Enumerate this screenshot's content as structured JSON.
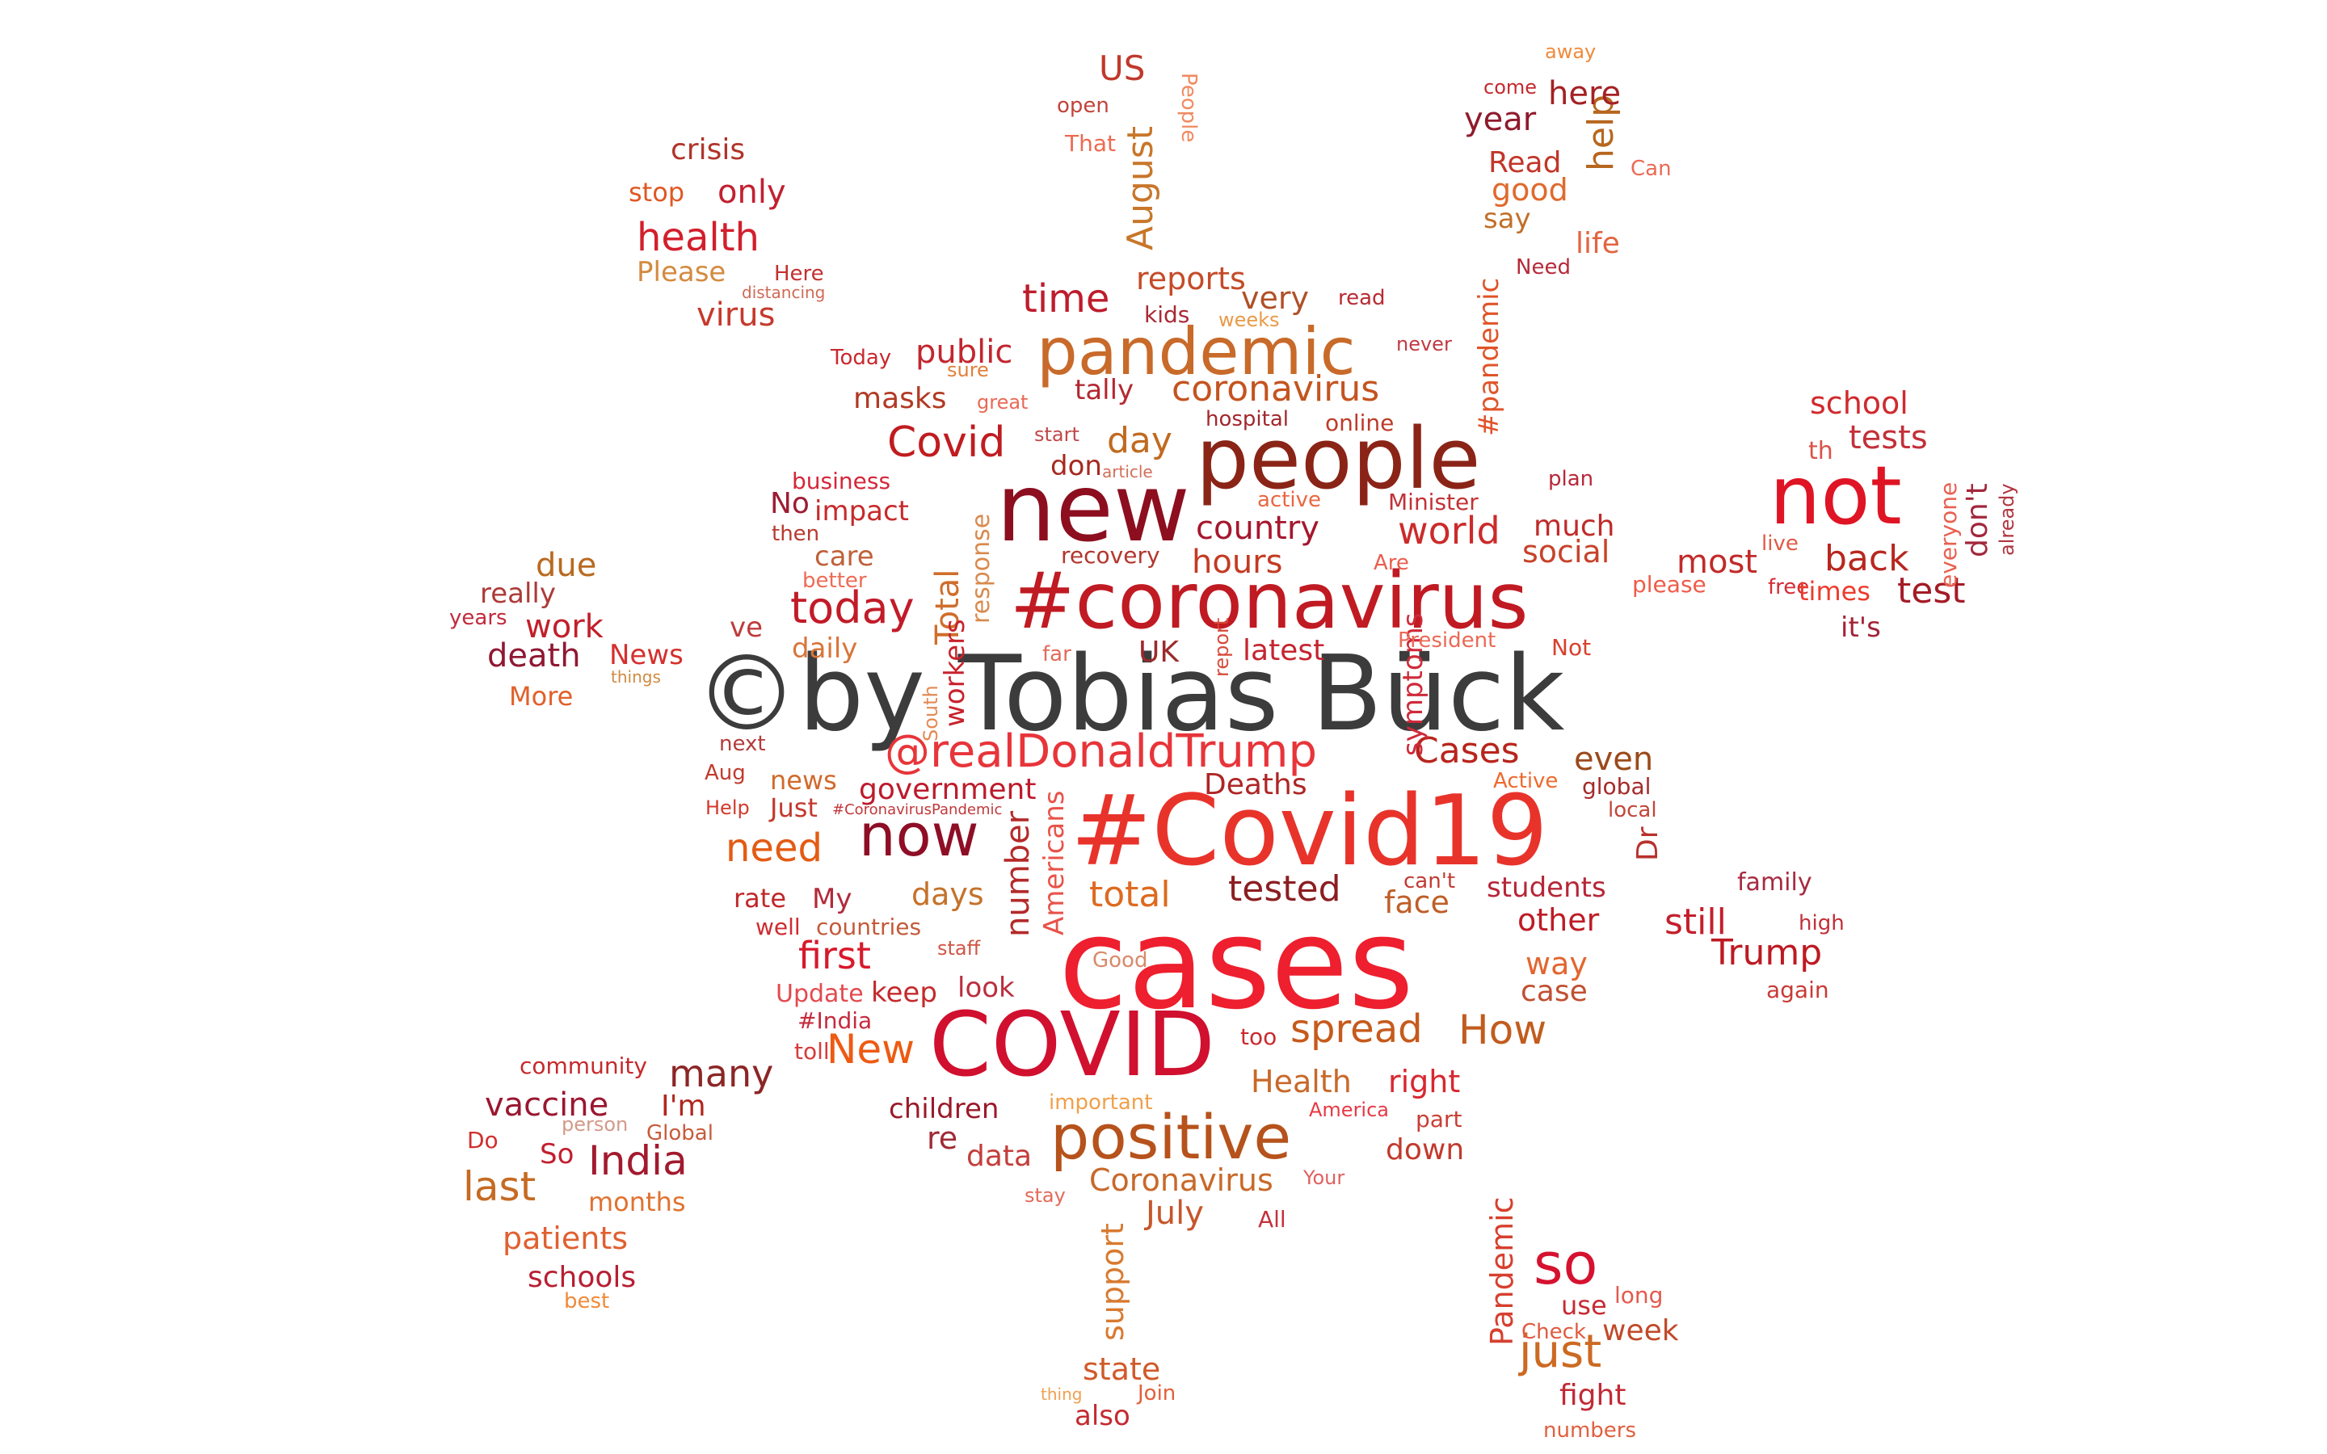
{
  "words": [
    {
      "text": "©by Tobias Bück",
      "color": "#3c3c3c"
    },
    {
      "text": "cases",
      "color": "#ee1f2e"
    },
    {
      "text": "#Covid19",
      "color": "#e8332b"
    },
    {
      "text": "#coronavirus",
      "color": "#c01a22"
    },
    {
      "text": "new",
      "color": "#8c0e1f"
    },
    {
      "text": "people",
      "color": "#8a2417"
    },
    {
      "text": "COVID",
      "color": "#d0102e"
    },
    {
      "text": "not",
      "color": "#df1424"
    },
    {
      "text": "pandemic",
      "color": "#c86a2a"
    },
    {
      "text": "positive",
      "color": "#b6521b"
    },
    {
      "text": "now",
      "color": "#8e0e26"
    },
    {
      "text": "so",
      "color": "#d5122f"
    },
    {
      "text": "@realDonaldTrump",
      "color": "#e7353a"
    },
    {
      "text": "today",
      "color": "#c21b28"
    },
    {
      "text": "Covid",
      "color": "#c01c20"
    },
    {
      "text": "coronavirus",
      "color": "#c4541f"
    },
    {
      "text": "time",
      "color": "#be1c2c"
    },
    {
      "text": "health",
      "color": "#d21f2d"
    },
    {
      "text": "spread",
      "color": "#c65a1c"
    },
    {
      "text": "India",
      "color": "#a21a2e"
    },
    {
      "text": "just",
      "color": "#cc6a22"
    },
    {
      "text": "New",
      "color": "#ed5a12"
    },
    {
      "text": "need",
      "color": "#e35b14"
    },
    {
      "text": "many",
      "color": "#8c2626"
    },
    {
      "text": "last",
      "color": "#c56b23"
    },
    {
      "text": "first",
      "color": "#d8192c"
    },
    {
      "text": "world",
      "color": "#cb2b2a"
    },
    {
      "text": "Cases",
      "color": "#b8251d"
    },
    {
      "text": "total",
      "color": "#dd6a20"
    },
    {
      "text": "tested",
      "color": "#8b1e21"
    },
    {
      "text": "still",
      "color": "#c41f2b"
    },
    {
      "text": "Trump",
      "color": "#bd1a22"
    },
    {
      "text": "How",
      "color": "#c15c1e"
    },
    {
      "text": "vaccine",
      "color": "#9a1730"
    },
    {
      "text": "work",
      "color": "#c21f2a"
    },
    {
      "text": "death",
      "color": "#8f1833"
    },
    {
      "text": "due",
      "color": "#b86a20"
    },
    {
      "text": "country",
      "color": "#a5172e"
    },
    {
      "text": "hours",
      "color": "#c33a22"
    },
    {
      "text": "back",
      "color": "#b8271f"
    },
    {
      "text": "most",
      "color": "#c22a2a"
    },
    {
      "text": "test",
      "color": "#a41b26"
    },
    {
      "text": "even",
      "color": "#9b4a1a"
    },
    {
      "text": "day",
      "color": "#c06a20"
    },
    {
      "text": "masks",
      "color": "#b23a25"
    },
    {
      "text": "public",
      "color": "#c2262f"
    },
    {
      "text": "help",
      "color": "#b7661f"
    },
    {
      "text": "here",
      "color": "#a32124"
    },
    {
      "text": "year",
      "color": "#8f1a2c"
    },
    {
      "text": "US",
      "color": "#c0392b"
    },
    {
      "text": "August",
      "color": "#c8762a"
    },
    {
      "text": "reports",
      "color": "#c44b28"
    },
    {
      "text": "very",
      "color": "#b05028"
    },
    {
      "text": "crisis",
      "color": "#b0342a"
    },
    {
      "text": "only",
      "color": "#c22030"
    },
    {
      "text": "stop",
      "color": "#e05722"
    },
    {
      "text": "Please",
      "color": "#d48a40"
    },
    {
      "text": "virus",
      "color": "#c53a2d"
    },
    {
      "text": "Here",
      "color": "#c2302e"
    },
    {
      "text": "distancing",
      "color": "#d06a55"
    },
    {
      "text": "Today",
      "color": "#c8292f"
    },
    {
      "text": "sure",
      "color": "#e0803a"
    },
    {
      "text": "great",
      "color": "#e86a55"
    },
    {
      "text": "tally",
      "color": "#b42830"
    },
    {
      "text": "kids",
      "color": "#a82a35"
    },
    {
      "text": "weeks",
      "color": "#e89a48"
    },
    {
      "text": "read",
      "color": "#b82a33"
    },
    {
      "text": "never",
      "color": "#c23a44"
    },
    {
      "text": "#pandemic",
      "color": "#e0542a"
    },
    {
      "text": "hospital",
      "color": "#a2282d"
    },
    {
      "text": "online",
      "color": "#bd3b2a"
    },
    {
      "text": "start",
      "color": "#c04848"
    },
    {
      "text": "article",
      "color": "#d26e5a"
    },
    {
      "text": "don",
      "color": "#a6291e"
    },
    {
      "text": "business",
      "color": "#d5273a"
    },
    {
      "text": "No",
      "color": "#9c1d34"
    },
    {
      "text": "impact",
      "color": "#c72a2b"
    },
    {
      "text": "then",
      "color": "#b83a2e"
    },
    {
      "text": "care",
      "color": "#c0603a"
    },
    {
      "text": "better",
      "color": "#ed6b55"
    },
    {
      "text": "Total",
      "color": "#cf6e2c"
    },
    {
      "text": "response",
      "color": "#d88a4e"
    },
    {
      "text": "active",
      "color": "#ea6640"
    },
    {
      "text": "Minister",
      "color": "#c23237"
    },
    {
      "text": "recovery",
      "color": "#b2372e"
    },
    {
      "text": "Are",
      "color": "#ea5e4e"
    },
    {
      "text": "much",
      "color": "#c02a2a"
    },
    {
      "text": "social",
      "color": "#c6432a"
    },
    {
      "text": "please",
      "color": "#ef5b49"
    },
    {
      "text": "free",
      "color": "#d42c35"
    },
    {
      "text": "times",
      "color": "#ed3b2c"
    },
    {
      "text": "it's",
      "color": "#a32438"
    },
    {
      "text": "live",
      "color": "#e05a45"
    },
    {
      "text": "everyone",
      "color": "#e86050"
    },
    {
      "text": "don't",
      "color": "#a2273c"
    },
    {
      "text": "already",
      "color": "#b23540"
    },
    {
      "text": "plan",
      "color": "#b8283a"
    },
    {
      "text": "school",
      "color": "#d02a2e"
    },
    {
      "text": "tests",
      "color": "#c3303a"
    },
    {
      "text": "th",
      "color": "#d85448"
    },
    {
      "text": "really",
      "color": "#ad3a38"
    },
    {
      "text": "years",
      "color": "#c22a3c"
    },
    {
      "text": "News",
      "color": "#d5302e"
    },
    {
      "text": "things",
      "color": "#d08a40"
    },
    {
      "text": "More",
      "color": "#e0602a"
    },
    {
      "text": "ve",
      "color": "#bf3b3c"
    },
    {
      "text": "daily",
      "color": "#d8753a"
    },
    {
      "text": "workers",
      "color": "#c8222c"
    },
    {
      "text": "far",
      "color": "#e26a5a"
    },
    {
      "text": "UK",
      "color": "#9b2a2c"
    },
    {
      "text": "report",
      "color": "#d64a3a"
    },
    {
      "text": "latest",
      "color": "#c52430"
    },
    {
      "text": "symptoms",
      "color": "#cf2a3a"
    },
    {
      "text": "President",
      "color": "#ea6a55"
    },
    {
      "text": "Not",
      "color": "#d8402d"
    },
    {
      "text": "next",
      "color": "#b53a3a"
    },
    {
      "text": "Aug",
      "color": "#c23a2d"
    },
    {
      "text": "South",
      "color": "#e28a55"
    },
    {
      "text": "news",
      "color": "#d06a2c"
    },
    {
      "text": "government",
      "color": "#bc1b2c"
    },
    {
      "text": "Deaths",
      "color": "#ae2525"
    },
    {
      "text": "Active",
      "color": "#ee6a2d"
    },
    {
      "text": "global",
      "color": "#a52a2a"
    },
    {
      "text": "local",
      "color": "#c2463b"
    },
    {
      "text": "Help",
      "color": "#d23a2c"
    },
    {
      "text": "Just",
      "color": "#c23a2e"
    },
    {
      "text": "#CoronavirusPandemic",
      "color": "#c2383a"
    },
    {
      "text": "Dr",
      "color": "#b8322c"
    },
    {
      "text": "number",
      "color": "#b42a2a"
    },
    {
      "text": "Americans",
      "color": "#e8534a"
    },
    {
      "text": "days",
      "color": "#c5722a"
    },
    {
      "text": "face",
      "color": "#bf5e28"
    },
    {
      "text": "can't",
      "color": "#c23a33"
    },
    {
      "text": "students",
      "color": "#b62638"
    },
    {
      "text": "other",
      "color": "#be1c25"
    },
    {
      "text": "family",
      "color": "#a62a40"
    },
    {
      "text": "high",
      "color": "#c0303a"
    },
    {
      "text": "rate",
      "color": "#c0282a"
    },
    {
      "text": "My",
      "color": "#b22a3a"
    },
    {
      "text": "well",
      "color": "#cf2b30"
    },
    {
      "text": "countries",
      "color": "#c35a3a"
    },
    {
      "text": "staff",
      "color": "#d05545"
    },
    {
      "text": "Good",
      "color": "#d88a6a"
    },
    {
      "text": "way",
      "color": "#e26630"
    },
    {
      "text": "case",
      "color": "#c05030"
    },
    {
      "text": "again",
      "color": "#c83a35"
    },
    {
      "text": "Update",
      "color": "#e24a4f"
    },
    {
      "text": "keep",
      "color": "#c42a2c"
    },
    {
      "text": "look",
      "color": "#ba2f40"
    },
    {
      "text": "#India",
      "color": "#c62a3c"
    },
    {
      "text": "toll",
      "color": "#d83a3a"
    },
    {
      "text": "too",
      "color": "#ca2a2e"
    },
    {
      "text": "community",
      "color": "#c52a2c"
    },
    {
      "text": "I'm",
      "color": "#b0271e"
    },
    {
      "text": "Health",
      "color": "#c8692a"
    },
    {
      "text": "right",
      "color": "#d82830"
    },
    {
      "text": "children",
      "color": "#9a1a2a"
    },
    {
      "text": "important",
      "color": "#f0a04a"
    },
    {
      "text": "America",
      "color": "#e63a45"
    },
    {
      "text": "part",
      "color": "#c93f35"
    },
    {
      "text": "person",
      "color": "#d49a8a"
    },
    {
      "text": "Do",
      "color": "#d0302e"
    },
    {
      "text": "Global",
      "color": "#c85a3a"
    },
    {
      "text": "So",
      "color": "#c11f2e"
    },
    {
      "text": "re",
      "color": "#a02a35"
    },
    {
      "text": "data",
      "color": "#c33e3b"
    },
    {
      "text": "down",
      "color": "#c23a2d"
    },
    {
      "text": "Coronavirus",
      "color": "#c8692a"
    },
    {
      "text": "Your",
      "color": "#e06060"
    },
    {
      "text": "months",
      "color": "#e0722f"
    },
    {
      "text": "stay",
      "color": "#e36a5a"
    },
    {
      "text": "July",
      "color": "#c6562a"
    },
    {
      "text": "All",
      "color": "#c5303a"
    },
    {
      "text": "patients",
      "color": "#e06030"
    },
    {
      "text": "support",
      "color": "#d87a30"
    },
    {
      "text": "Pandemic",
      "color": "#d6402e"
    },
    {
      "text": "long",
      "color": "#e45a4e"
    },
    {
      "text": "use",
      "color": "#c72a33"
    },
    {
      "text": "week",
      "color": "#c04a2a"
    },
    {
      "text": "Check",
      "color": "#e05a3f"
    },
    {
      "text": "schools",
      "color": "#b71f33"
    },
    {
      "text": "best",
      "color": "#f08a3a"
    },
    {
      "text": "state",
      "color": "#d05a2a"
    },
    {
      "text": "fight",
      "color": "#c12a35"
    },
    {
      "text": "thing",
      "color": "#f0a050"
    },
    {
      "text": "Join",
      "color": "#e2603a"
    },
    {
      "text": "also",
      "color": "#c42a30"
    },
    {
      "text": "numbers",
      "color": "#e06040"
    },
    {
      "text": "open",
      "color": "#c0443a"
    },
    {
      "text": "That",
      "color": "#ee6a50"
    },
    {
      "text": "People",
      "color": "#f08a60"
    },
    {
      "text": "come",
      "color": "#c42a30"
    },
    {
      "text": "away",
      "color": "#f08a3a"
    },
    {
      "text": "Read",
      "color": "#c2362a"
    },
    {
      "text": "Can",
      "color": "#ea6a55"
    },
    {
      "text": "good",
      "color": "#e06a2d"
    },
    {
      "text": "say",
      "color": "#c0702a"
    },
    {
      "text": "life",
      "color": "#e26440"
    },
    {
      "text": "Need",
      "color": "#b62a3a"
    }
  ]
}
